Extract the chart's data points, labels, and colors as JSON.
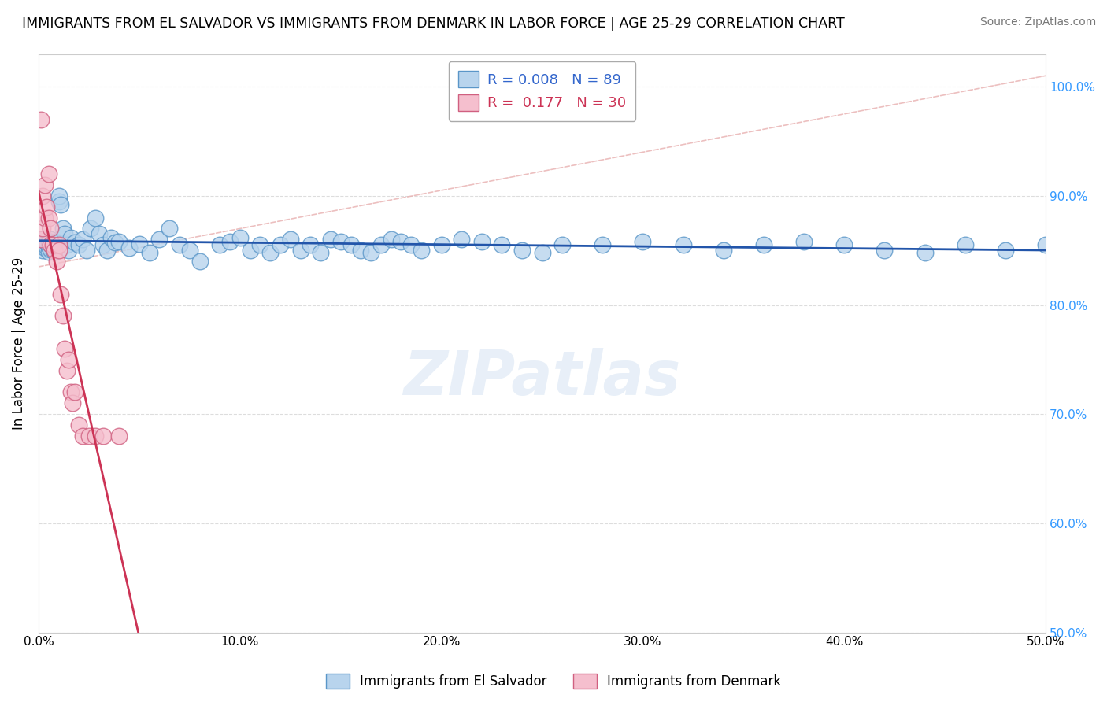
{
  "title": "IMMIGRANTS FROM EL SALVADOR VS IMMIGRANTS FROM DENMARK IN LABOR FORCE | AGE 25-29 CORRELATION CHART",
  "source": "Source: ZipAtlas.com",
  "ylabel": "In Labor Force | Age 25-29",
  "series1_label": "Immigrants from El Salvador",
  "series2_label": "Immigrants from Denmark",
  "R1": 0.008,
  "N1": 89,
  "R2": 0.177,
  "N2": 30,
  "color1": "#b8d4ed",
  "color1_edge": "#5a96c8",
  "color1_line": "#2255aa",
  "color2": "#f5bfce",
  "color2_edge": "#d06080",
  "color2_line": "#cc3355",
  "diag_line_color": "#ddbbbb",
  "xlim": [
    0.0,
    0.5
  ],
  "ylim": [
    0.5,
    1.03
  ],
  "xticks": [
    0.0,
    0.1,
    0.2,
    0.3,
    0.4,
    0.5
  ],
  "yticks": [
    0.5,
    0.6,
    0.7,
    0.8,
    0.9,
    1.0
  ],
  "xtick_labels": [
    "0.0%",
    "10.0%",
    "20.0%",
    "30.0%",
    "40.0%",
    "50.0%"
  ],
  "ytick_labels_right": [
    "50.0%",
    "60.0%",
    "70.0%",
    "80.0%",
    "90.0%",
    "100.0%"
  ],
  "watermark": "ZIPatlas",
  "blue_x": [
    0.001,
    0.001,
    0.002,
    0.002,
    0.002,
    0.003,
    0.003,
    0.003,
    0.004,
    0.004,
    0.005,
    0.005,
    0.005,
    0.006,
    0.006,
    0.006,
    0.007,
    0.007,
    0.008,
    0.008,
    0.009,
    0.01,
    0.01,
    0.011,
    0.012,
    0.013,
    0.014,
    0.015,
    0.016,
    0.018,
    0.02,
    0.022,
    0.024,
    0.026,
    0.028,
    0.03,
    0.032,
    0.034,
    0.036,
    0.038,
    0.04,
    0.045,
    0.05,
    0.055,
    0.06,
    0.065,
    0.07,
    0.075,
    0.08,
    0.09,
    0.095,
    0.1,
    0.105,
    0.11,
    0.115,
    0.12,
    0.125,
    0.13,
    0.135,
    0.14,
    0.145,
    0.15,
    0.155,
    0.16,
    0.165,
    0.17,
    0.175,
    0.18,
    0.185,
    0.19,
    0.2,
    0.21,
    0.22,
    0.23,
    0.24,
    0.25,
    0.26,
    0.28,
    0.3,
    0.32,
    0.34,
    0.36,
    0.38,
    0.4,
    0.42,
    0.44,
    0.46,
    0.48,
    0.5
  ],
  "blue_y": [
    0.856,
    0.858,
    0.85,
    0.855,
    0.86,
    0.852,
    0.856,
    0.861,
    0.853,
    0.857,
    0.849,
    0.854,
    0.858,
    0.851,
    0.855,
    0.86,
    0.853,
    0.857,
    0.849,
    0.854,
    0.858,
    0.895,
    0.9,
    0.892,
    0.87,
    0.865,
    0.855,
    0.85,
    0.862,
    0.857,
    0.855,
    0.86,
    0.85,
    0.87,
    0.88,
    0.865,
    0.855,
    0.85,
    0.862,
    0.857,
    0.858,
    0.852,
    0.856,
    0.848,
    0.86,
    0.87,
    0.855,
    0.85,
    0.84,
    0.855,
    0.858,
    0.862,
    0.85,
    0.855,
    0.848,
    0.855,
    0.86,
    0.85,
    0.855,
    0.848,
    0.86,
    0.858,
    0.855,
    0.85,
    0.848,
    0.855,
    0.86,
    0.858,
    0.855,
    0.85,
    0.855,
    0.86,
    0.858,
    0.855,
    0.85,
    0.848,
    0.855,
    0.855,
    0.858,
    0.855,
    0.85,
    0.855,
    0.858,
    0.855,
    0.85,
    0.848,
    0.855,
    0.85,
    0.855
  ],
  "pink_x": [
    0.001,
    0.001,
    0.002,
    0.002,
    0.003,
    0.003,
    0.004,
    0.005,
    0.005,
    0.006,
    0.006,
    0.007,
    0.008,
    0.009,
    0.01,
    0.01,
    0.011,
    0.012,
    0.013,
    0.014,
    0.015,
    0.016,
    0.017,
    0.018,
    0.02,
    0.022,
    0.025,
    0.028,
    0.032,
    0.04
  ],
  "pink_y": [
    0.97,
    0.86,
    0.9,
    0.87,
    0.88,
    0.91,
    0.89,
    0.88,
    0.92,
    0.87,
    0.855,
    0.855,
    0.85,
    0.84,
    0.855,
    0.85,
    0.81,
    0.79,
    0.76,
    0.74,
    0.75,
    0.72,
    0.71,
    0.72,
    0.69,
    0.68,
    0.68,
    0.68,
    0.68,
    0.68
  ]
}
